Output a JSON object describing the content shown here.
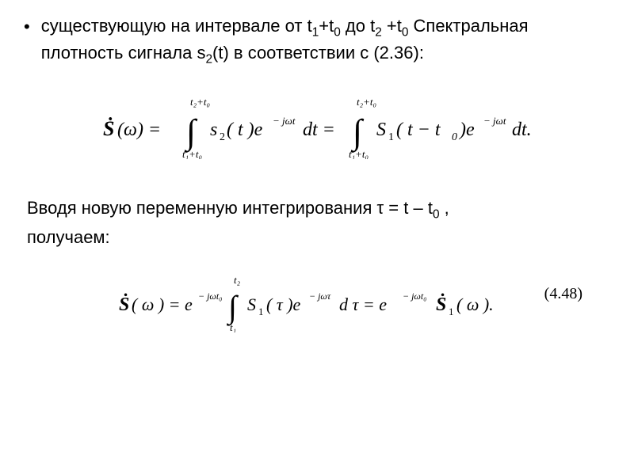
{
  "bullet": {
    "marker": "•",
    "line1_pre": "существующую на интервале от t",
    "line1_sub1": "1",
    "line1_mid1": "+t",
    "line1_sub2": "0",
    "line1_mid2": " до t",
    "line1_sub3": "2",
    "line1_mid3": " +t",
    "line1_sub4": "0",
    "line1_post": " Спектральная",
    "line2_pre": "плотность  сигнала s",
    "line2_sub": "2",
    "line2_post": "(t) в соответствии с (2.36):"
  },
  "eq1": {
    "Sdot": "Ṡ",
    "omega": "(ω) =",
    "int_top1": "t₂+t₀",
    "int_bot1": "t₁+t₀",
    "s2": "s",
    "s2sub": "2",
    "s2paren": "( t )e",
    "exp1": "− jωt",
    "dt": "dt =",
    "int_top2": "t₂+t₀",
    "int_bot2": "t₁+t₀",
    "S1": "S",
    "S1sub": "1",
    "S1paren": "( t − t",
    "S1sub0": "0",
    "S1close": " )e",
    "exp2": "− jωt",
    "dt2": "dt.",
    "integral": "∫"
  },
  "middle": {
    "line1_a": "Вводя новую переменную интегрирования ",
    "tau": "τ",
    "line1_b": " = t – t",
    "sub0": "0",
    "line1_c": " ,",
    "line2": "получаем:"
  },
  "eq2": {
    "Sdot": "Ṡ",
    "omega": "( ω ) = e",
    "exp1": "− jωt₀",
    "int_top": "t₂",
    "int_bot": "t₁",
    "integral": "∫",
    "S1": "S",
    "S1sub": "1",
    "tau": "( τ )e",
    "exp2": "− jωτ",
    "dtau": "d τ = e",
    "exp3": "− jωt₀",
    "Sdot2": "Ṡ",
    "S1b": "1",
    "omega2": "( ω ).",
    "ref": "(4.48)"
  },
  "style": {
    "text_color": "#000000",
    "bg": "#ffffff",
    "body_fontsize": 22,
    "eq_fontfamily": "Times New Roman"
  }
}
